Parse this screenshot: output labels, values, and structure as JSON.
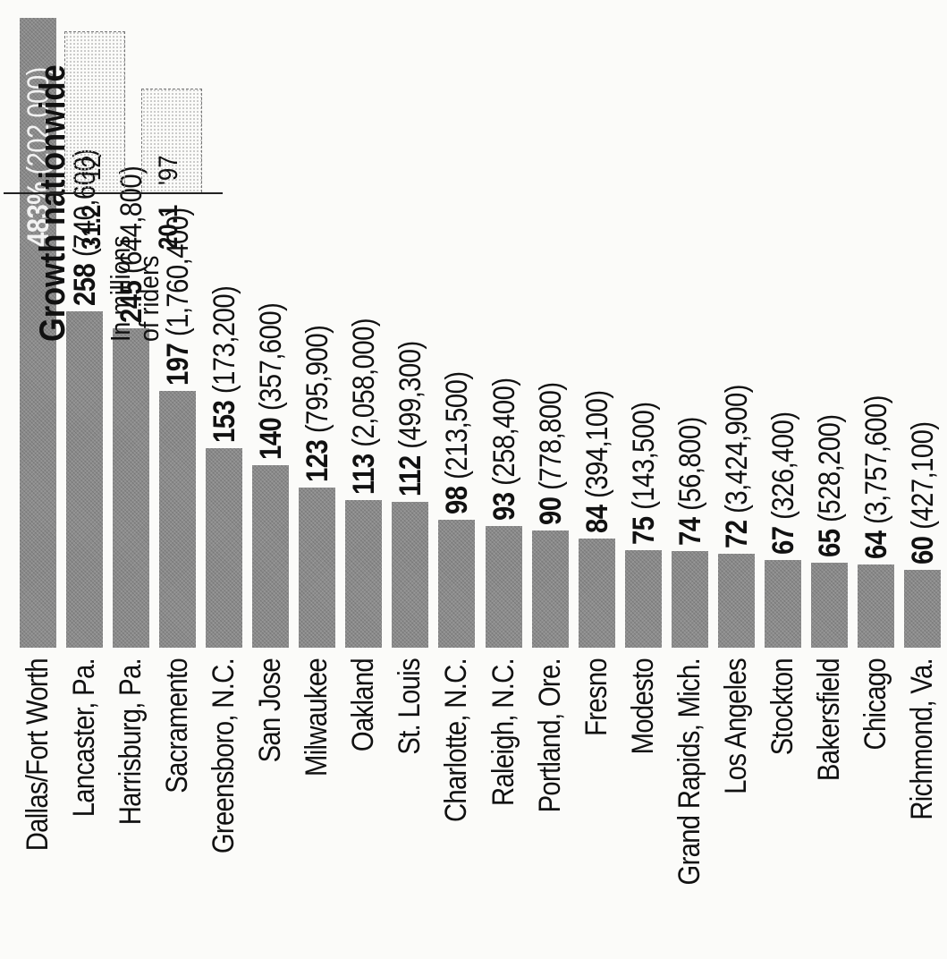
{
  "chart_data": {
    "type": "bar",
    "orientation": "horizontal",
    "categories": [
      "Dallas/Fort Worth",
      "Lancaster, Pa.",
      "Harrisburg, Pa.",
      "Sacramento",
      "Greensboro, N.C.",
      "San Jose",
      "Milwaukee",
      "Oakland",
      "St. Louis",
      "Charlotte, N.C.",
      "Raleigh, N.C.",
      "Portland, Ore.",
      "Fresno",
      "Modesto",
      "Grand Rapids, Mich.",
      "Los Angeles",
      "Stockton",
      "Bakersfield",
      "Chicago",
      "Richmond, Va."
    ],
    "values": [
      483,
      258,
      245,
      197,
      153,
      140,
      123,
      113,
      112,
      98,
      93,
      90,
      84,
      75,
      74,
      72,
      67,
      65,
      64,
      60
    ],
    "value_labels": [
      "483%",
      "258",
      "245",
      "197",
      "153",
      "140",
      "123",
      "113",
      "112",
      "98",
      "93",
      "90",
      "84",
      "75",
      "74",
      "72",
      "67",
      "65",
      "64",
      "60"
    ],
    "riders_labels": [
      "(202,000)",
      "(740,600)",
      "(644,800)",
      "(1,760,400)",
      "(173,200)",
      "(357,600)",
      "(795,900)",
      "(2,058,000)",
      "(499,300)",
      "(213,500)",
      "(258,400)",
      "(778,800)",
      "(394,100)",
      "(143,500)",
      "(56,800)",
      "(3,424,900)",
      "(326,400)",
      "(528,200)",
      "(3,757,600)",
      "(427,100)"
    ],
    "xlim": [
      0,
      483
    ],
    "rotation": "rotated 90 degrees counter-clockwise",
    "bar_color": "#8c8c8c",
    "inset": {
      "type": "bar",
      "title": "Growth nationwide",
      "subtitle_line1": "In millions",
      "subtitle_line2": "of riders",
      "categories": [
        "'97",
        "'12"
      ],
      "values": [
        20.1,
        31.2
      ],
      "value_labels": [
        "20.1",
        "31.2"
      ]
    }
  }
}
